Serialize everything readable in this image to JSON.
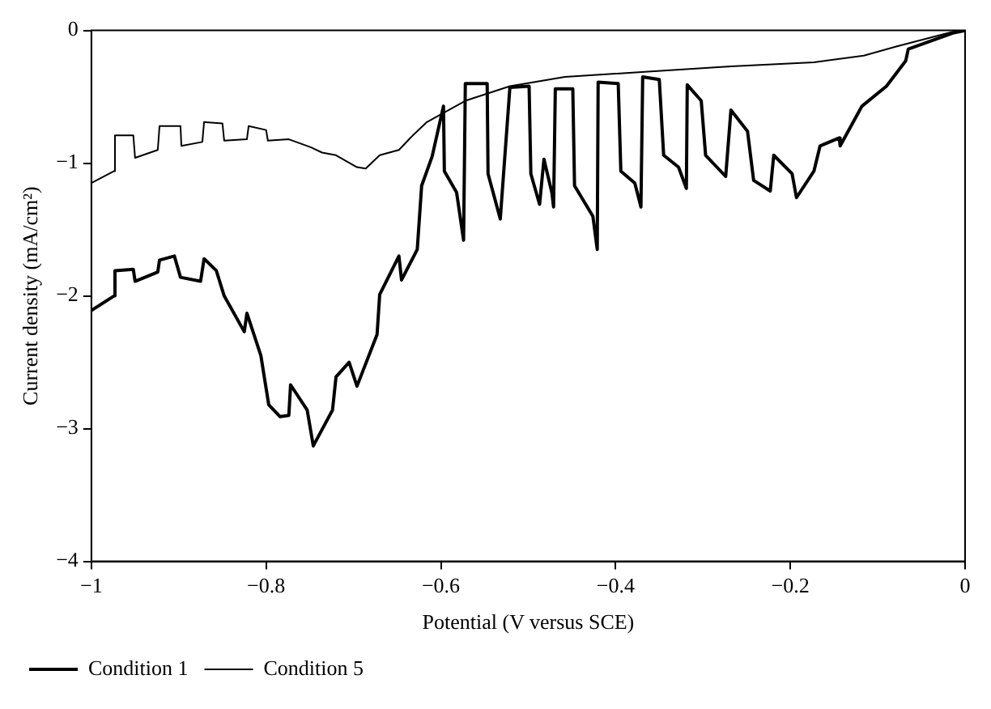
{
  "chart_data": {
    "type": "line",
    "xlabel": "Potential (V versus SCE)",
    "ylabel": "Current density (mA/cm²)",
    "xlim": [
      -1,
      0
    ],
    "ylim": [
      -4,
      0
    ],
    "xticks": [
      {
        "value": -1,
        "label": "−1"
      },
      {
        "value": -0.8,
        "label": "−0.8"
      },
      {
        "value": -0.6,
        "label": "−0.6"
      },
      {
        "value": -0.4,
        "label": "−0.4"
      },
      {
        "value": -0.2,
        "label": "−0.2"
      },
      0
    ],
    "yticks": [
      {
        "value": -4,
        "label": "−4"
      },
      {
        "value": -3,
        "label": "−3"
      },
      {
        "value": -2,
        "label": "−2"
      },
      {
        "value": -1,
        "label": "−1"
      },
      0
    ],
    "legend": "bottom left",
    "marker": "none",
    "series": [
      {
        "name": "Condition 1",
        "color": "#000000",
        "x": [
          -1,
          -0.974,
          -0.973,
          -0.952,
          -0.95,
          -0.924,
          -0.922,
          -0.905,
          -0.898,
          -0.875,
          -0.871,
          -0.857,
          -0.848,
          -0.825,
          -0.822,
          -0.806,
          -0.797,
          -0.784,
          -0.774,
          -0.772,
          -0.753,
          -0.746,
          -0.724,
          -0.72,
          -0.705,
          -0.696,
          -0.673,
          -0.67,
          -0.648,
          -0.645,
          -0.627,
          -0.622,
          -0.61,
          -0.597,
          -0.596,
          -0.582,
          -0.574,
          -0.572,
          -0.547,
          -0.546,
          -0.532,
          -0.521,
          -0.499,
          -0.497,
          -0.487,
          -0.482,
          -0.473,
          -0.471,
          -0.469,
          -0.449,
          -0.447,
          -0.426,
          -0.421,
          -0.42,
          -0.397,
          -0.394,
          -0.378,
          -0.371,
          -0.369,
          -0.35,
          -0.345,
          -0.328,
          -0.319,
          -0.318,
          -0.302,
          -0.297,
          -0.274,
          -0.268,
          -0.249,
          -0.242,
          -0.223,
          -0.219,
          -0.198,
          -0.193,
          -0.173,
          -0.166,
          -0.144,
          -0.143,
          -0.118,
          -0.09,
          -0.068,
          -0.065,
          -0.014,
          0
        ],
        "values": [
          -2.11,
          -2.0,
          -1.81,
          -1.8,
          -1.89,
          -1.82,
          -1.73,
          -1.7,
          -1.86,
          -1.89,
          -1.72,
          -1.81,
          -2.0,
          -2.27,
          -2.13,
          -2.45,
          -2.82,
          -2.91,
          -2.9,
          -2.67,
          -2.86,
          -3.13,
          -2.86,
          -2.61,
          -2.5,
          -2.68,
          -2.29,
          -1.99,
          -1.7,
          -1.88,
          -1.65,
          -1.17,
          -0.95,
          -0.57,
          -1.06,
          -1.22,
          -1.58,
          -0.4,
          -0.4,
          -1.08,
          -1.42,
          -0.43,
          -0.42,
          -1.08,
          -1.31,
          -0.97,
          -1.22,
          -1.33,
          -0.44,
          -0.44,
          -1.17,
          -1.4,
          -1.65,
          -0.39,
          -0.4,
          -1.06,
          -1.15,
          -1.33,
          -0.35,
          -0.37,
          -0.94,
          -1.03,
          -1.19,
          -0.41,
          -0.53,
          -0.94,
          -1.1,
          -0.6,
          -0.76,
          -1.13,
          -1.21,
          -0.94,
          -1.08,
          -1.26,
          -1.06,
          -0.87,
          -0.81,
          -0.87,
          -0.57,
          -0.42,
          -0.23,
          -0.14,
          -0.02,
          0
        ]
      },
      {
        "name": "Condition 5",
        "color": "#000000",
        "x": [
          -1,
          -0.974,
          -0.973,
          -0.952,
          -0.95,
          -0.924,
          -0.922,
          -0.898,
          -0.897,
          -0.873,
          -0.871,
          -0.85,
          -0.848,
          -0.822,
          -0.82,
          -0.8,
          -0.798,
          -0.774,
          -0.749,
          -0.736,
          -0.72,
          -0.696,
          -0.686,
          -0.67,
          -0.648,
          -0.635,
          -0.616,
          -0.572,
          -0.521,
          -0.458,
          -0.363,
          -0.268,
          -0.173,
          -0.116,
          -0.078,
          -0.014,
          0
        ],
        "values": [
          -1.15,
          -1.06,
          -0.79,
          -0.79,
          -0.96,
          -0.9,
          -0.72,
          -0.72,
          -0.87,
          -0.84,
          -0.69,
          -0.7,
          -0.83,
          -0.82,
          -0.72,
          -0.75,
          -0.83,
          -0.82,
          -0.88,
          -0.92,
          -0.94,
          -1.03,
          -1.04,
          -0.94,
          -0.9,
          -0.81,
          -0.69,
          -0.53,
          -0.42,
          -0.35,
          -0.31,
          -0.27,
          -0.24,
          -0.19,
          -0.12,
          -0.01,
          0
        ]
      }
    ]
  }
}
